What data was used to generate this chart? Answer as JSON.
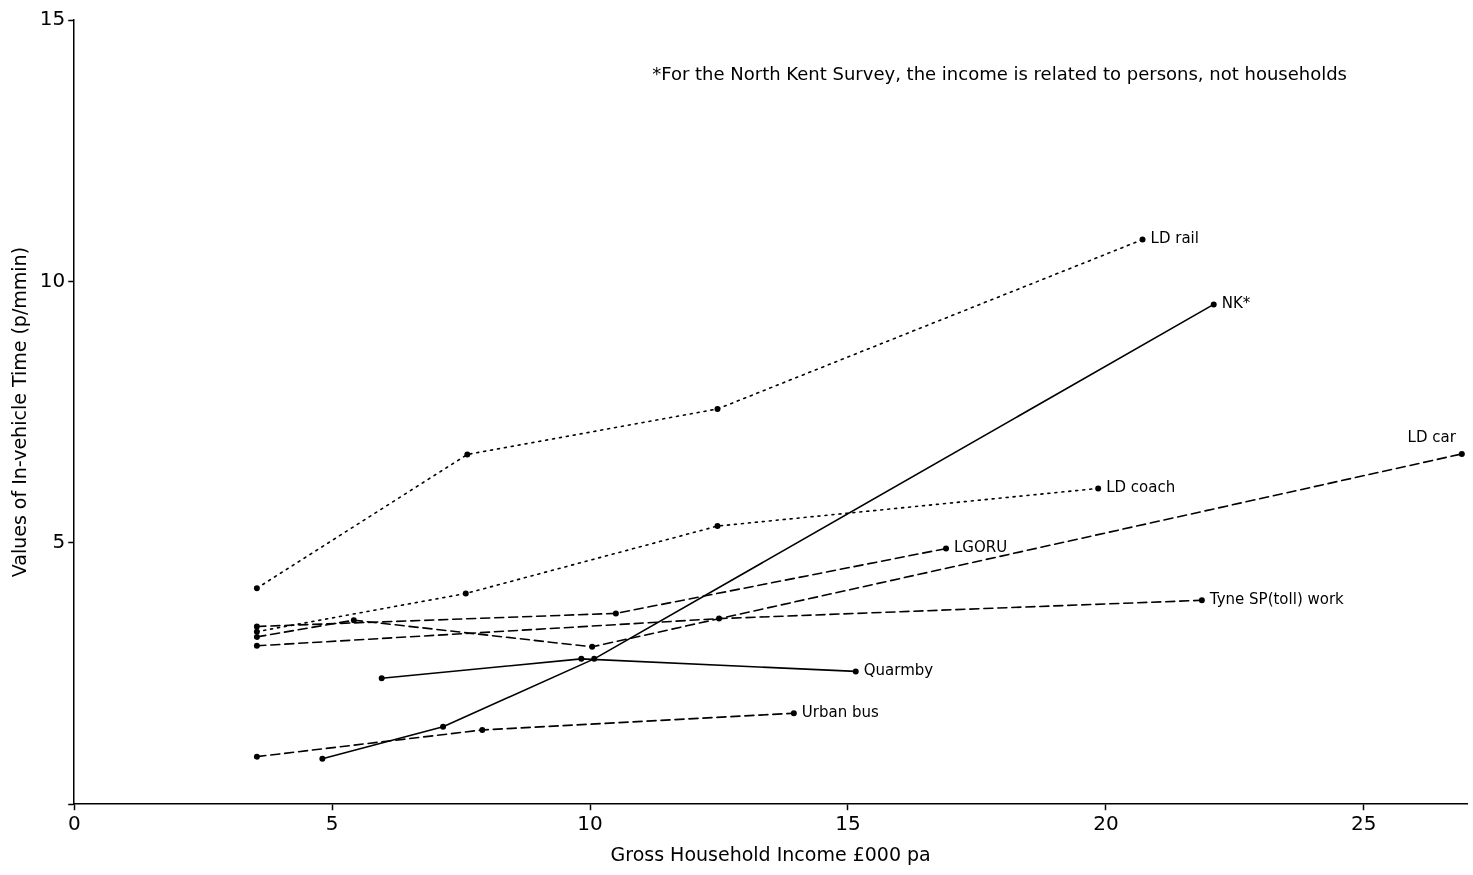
{
  "chart_data": {
    "type": "line",
    "xlabel": "Gross Household Income £000 pa",
    "ylabel": "Values of In-vehicle Time (p/mmin)",
    "xlim": [
      0,
      27
    ],
    "xticks": [
      0,
      5,
      10,
      15,
      20,
      25
    ],
    "ylim": [
      0,
      15
    ],
    "yticks": [
      {
        "value": 0,
        "label": null
      },
      5,
      10,
      15
    ],
    "grid": false,
    "legend": false,
    "marker": "circle",
    "annotations": [
      "*For the North Kent Survey, the income is related to persons, not households"
    ],
    "series": [
      {
        "name": "LD rail",
        "color": "#000000",
        "line_style": "dotted",
        "x": [
          3.54,
          7.62,
          12.47,
          20.71
        ],
        "values": [
          4.13,
          6.69,
          7.56,
          10.8
        ]
      },
      {
        "name": "NK*",
        "color": "#000000",
        "line_style": "solid",
        "x": [
          4.81,
          7.15,
          10.08,
          22.09
        ],
        "values": [
          0.87,
          1.48,
          2.78,
          9.56
        ]
      },
      {
        "name": "LD car",
        "color": "#000000",
        "line_style": "dashed",
        "x": [
          3.54,
          5.42,
          10.04,
          26.9
        ],
        "values": [
          3.2,
          3.52,
          3.01,
          6.7
        ]
      },
      {
        "name": "LD coach",
        "color": "#000000",
        "line_style": "dotted",
        "x": [
          3.54,
          7.59,
          12.47,
          19.85
        ],
        "values": [
          3.3,
          4.03,
          5.32,
          6.04
        ]
      },
      {
        "name": "LGORU",
        "color": "#000000",
        "line_style": "dashed",
        "x": [
          3.54,
          10.5,
          16.9
        ],
        "values": [
          3.4,
          3.65,
          4.89
        ]
      },
      {
        "name": "Tyne SP(toll) work",
        "color": "#000000",
        "line_style": "dashed",
        "x": [
          3.54,
          12.5,
          21.86
        ],
        "values": [
          3.03,
          3.55,
          3.9
        ]
      },
      {
        "name": "Quarmby",
        "color": "#000000",
        "line_style": "solid",
        "x": [
          5.96,
          9.83,
          15.15
        ],
        "values": [
          2.41,
          2.78,
          2.54
        ]
      },
      {
        "name": "Urban bus",
        "color": "#000000",
        "line_style": "dashed",
        "x": [
          3.54,
          7.91,
          13.95
        ],
        "values": [
          0.91,
          1.42,
          1.74
        ]
      }
    ]
  }
}
